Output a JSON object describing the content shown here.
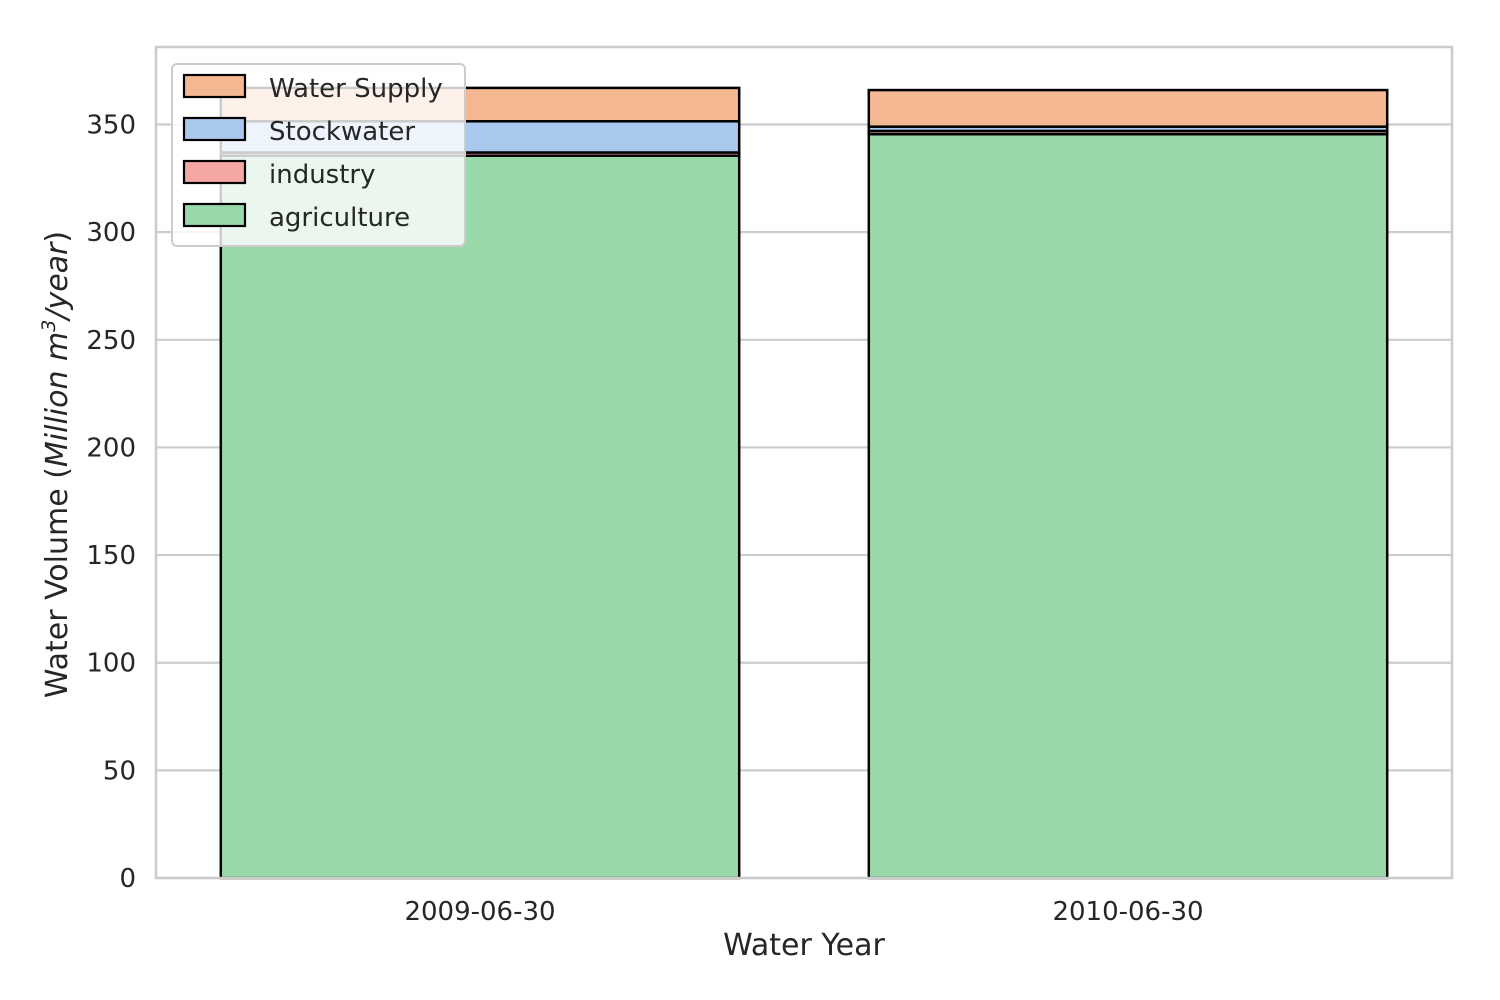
{
  "chart_data": {
    "type": "bar",
    "stacked": true,
    "xlabel": "Water Year",
    "ylabel_parts": {
      "prefix": "Water Volume (",
      "italic_a": "Million m",
      "sup": "3",
      "italic_b": "/year",
      "suffix": ")"
    },
    "categories": [
      "2009-06-30",
      "2010-06-30"
    ],
    "series": [
      {
        "name": "agriculture",
        "values": [
          335.5,
          345.5
        ],
        "color": "#99d8a9"
      },
      {
        "name": "industry",
        "values": [
          1.5,
          1.5
        ],
        "color": "#f4a6a4"
      },
      {
        "name": "Stockwater",
        "values": [
          14.5,
          2.0
        ],
        "color": "#a9c8ed"
      },
      {
        "name": "Water Supply",
        "values": [
          15.5,
          17.0
        ],
        "color": "#f3b792"
      }
    ],
    "legend_order": [
      "Water Supply",
      "Stockwater",
      "industry",
      "agriculture"
    ],
    "legend_position": "top-left",
    "ylim": [
      0,
      386
    ],
    "yticks": [
      0,
      50,
      100,
      150,
      200,
      250,
      300,
      350
    ],
    "grid": "horizontal",
    "colors": {
      "grid": "#cccccc",
      "frame": "#cccccc",
      "bar_edge": "#000000",
      "text": "#262626"
    }
  }
}
